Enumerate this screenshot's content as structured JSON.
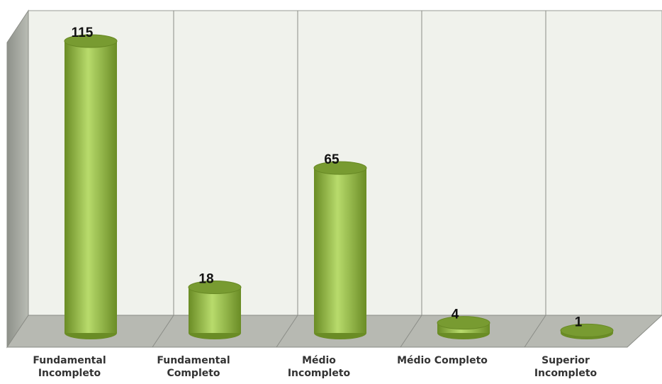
{
  "chart_data": {
    "type": "bar",
    "categories": [
      "Fundamental\nIncompleto",
      "Fundamental\nCompleto",
      "Médio\nIncompleto",
      "Médio Completo",
      "Superior\nIncompleto"
    ],
    "values": [
      115,
      18,
      65,
      4,
      1
    ],
    "color": "#8db33f"
  }
}
